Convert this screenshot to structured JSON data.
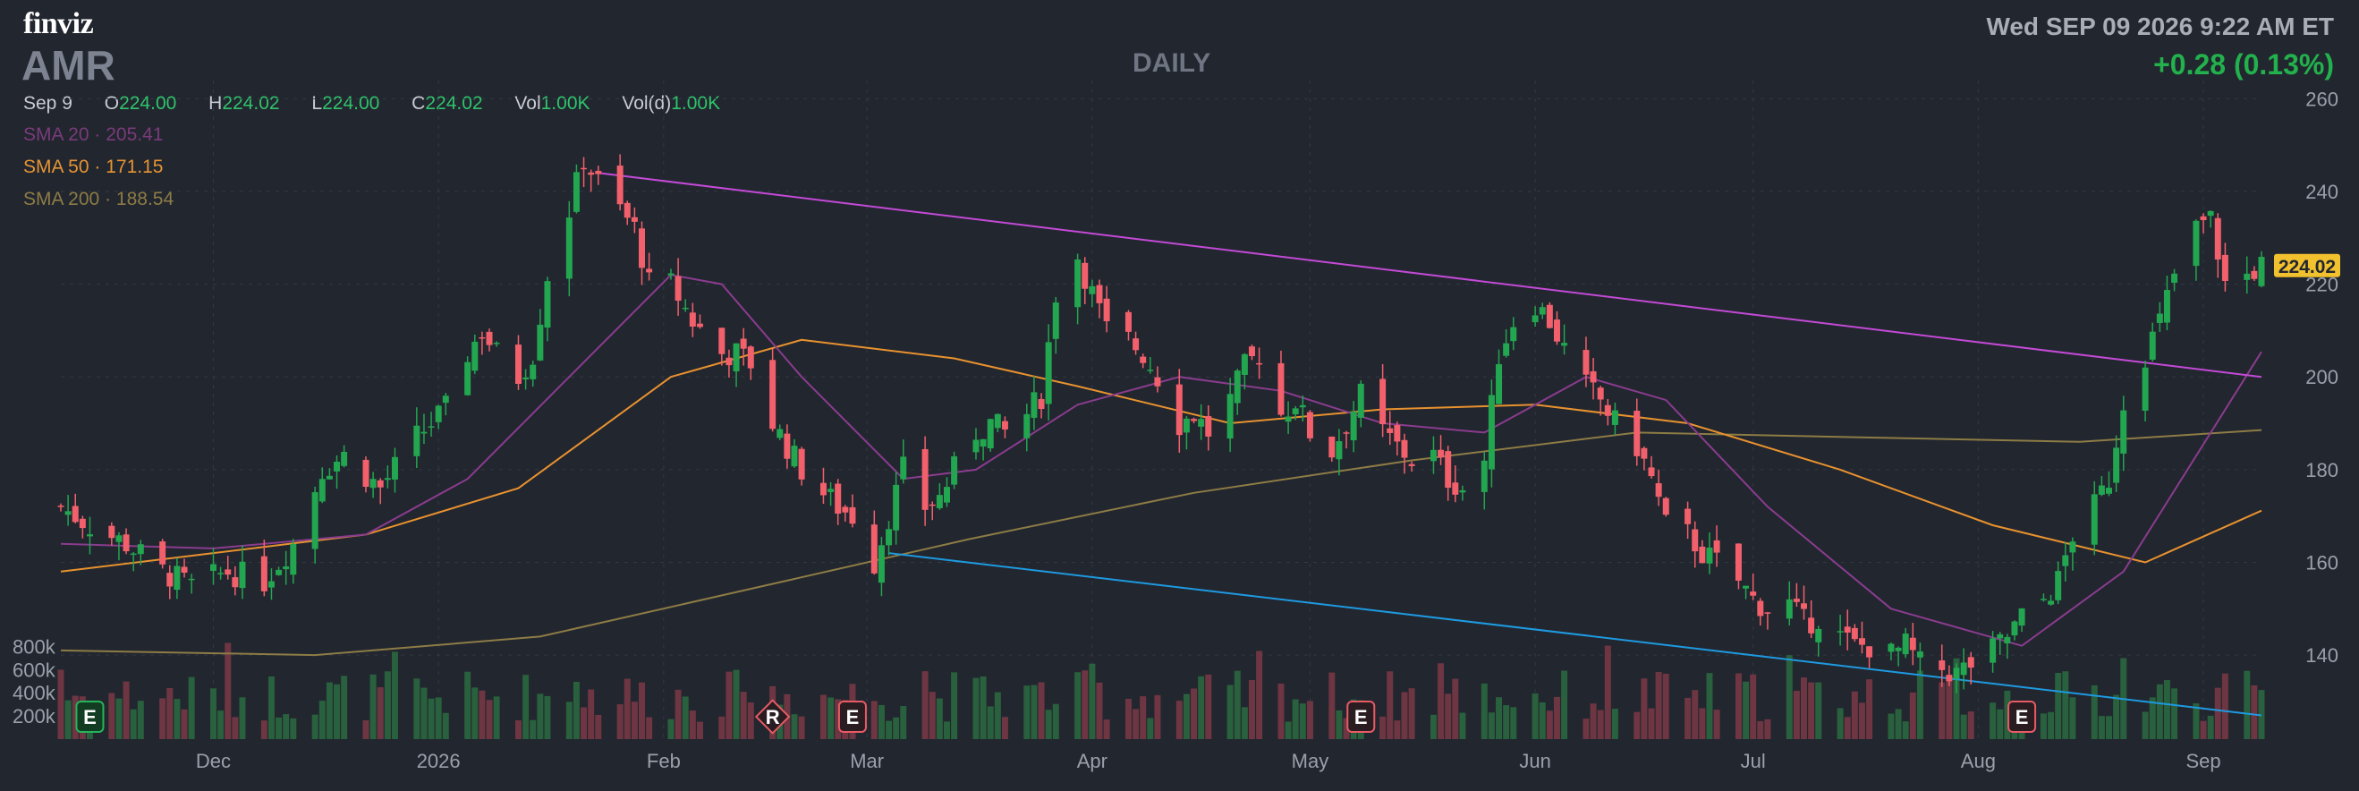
{
  "header": {
    "logo": "finviz",
    "ticker": "AMR",
    "period": "DAILY",
    "datetime": "Wed SEP 09 2026 9:22 AM ET",
    "change": "+0.28 (0.13%)"
  },
  "ohlc": {
    "date": "Sep 9",
    "open_label": "O",
    "open": "224.00",
    "high_label": "H",
    "high": "224.02",
    "low_label": "L",
    "low": "224.00",
    "close_label": "C",
    "close": "224.02",
    "vol_label": "Vol",
    "vol": "1.00K",
    "vold_label": "Vol(d)",
    "vold": "1.00K"
  },
  "indicators": {
    "sma20": {
      "label": "SMA 20",
      "value": "205.41"
    },
    "sma50": {
      "label": "SMA 50",
      "value": "171.15"
    },
    "sma200": {
      "label": "SMA 200",
      "value": "188.54"
    }
  },
  "colors": {
    "background": "#22262f",
    "up": "#22a650",
    "down": "#f2606c",
    "sma20": "#8a3c8e",
    "sma50": "#e8922f",
    "sma200": "#8d7c45",
    "upper_trendline": "#c34ad6",
    "lower_trendline": "#1e9ae0",
    "price_tag": "#f2c12e"
  },
  "chart_data": {
    "type": "candlestick",
    "title": "",
    "y_ticks": [
      "260",
      "240",
      "220",
      "200",
      "180",
      "160",
      "140"
    ],
    "ylim": [
      124,
      262
    ],
    "volume_ticks": [
      "800k",
      "600k",
      "400k",
      "200k"
    ],
    "volume_lim": [
      0,
      850000
    ],
    "x_ticks": [
      "Dec",
      "2026",
      "Feb",
      "Mar",
      "Apr",
      "May",
      "Jun",
      "Jul",
      "Aug",
      "Sep"
    ],
    "x_tick_dates": [
      "2025-12-01",
      "2026-01-01",
      "2026-02-01",
      "2026-03-01",
      "2026-04-01",
      "2026-05-01",
      "2026-06-01",
      "2026-07-01",
      "2026-08-01",
      "2026-09-01"
    ],
    "date_range": [
      "2025-11-10",
      "2026-09-09"
    ],
    "last_price": "224.02",
    "closes": [
      {
        "date": "2025-11-10",
        "close": 172
      },
      {
        "date": "2025-11-14",
        "close": 168
      },
      {
        "date": "2025-11-19",
        "close": 164
      },
      {
        "date": "2025-11-24",
        "close": 158
      },
      {
        "date": "2025-11-28",
        "close": 155
      },
      {
        "date": "2025-12-03",
        "close": 158
      },
      {
        "date": "2025-12-08",
        "close": 156
      },
      {
        "date": "2025-12-12",
        "close": 164
      },
      {
        "date": "2025-12-16",
        "close": 180
      },
      {
        "date": "2025-12-19",
        "close": 183
      },
      {
        "date": "2025-12-24",
        "close": 176
      },
      {
        "date": "2025-12-29",
        "close": 187
      },
      {
        "date": "2026-01-02",
        "close": 193
      },
      {
        "date": "2026-01-05",
        "close": 205
      },
      {
        "date": "2026-01-07",
        "close": 210
      },
      {
        "date": "2026-01-09",
        "close": 205
      },
      {
        "date": "2026-01-12",
        "close": 200
      },
      {
        "date": "2026-01-14",
        "close": 205
      },
      {
        "date": "2026-01-16",
        "close": 222
      },
      {
        "date": "2026-01-19",
        "close": 236
      },
      {
        "date": "2026-01-21",
        "close": 247
      },
      {
        "date": "2026-01-23",
        "close": 242
      },
      {
        "date": "2026-01-26",
        "close": 236
      },
      {
        "date": "2026-01-28",
        "close": 232
      },
      {
        "date": "2026-01-30",
        "close": 220
      },
      {
        "date": "2026-02-02",
        "close": 220
      },
      {
        "date": "2026-02-05",
        "close": 212
      },
      {
        "date": "2026-02-09",
        "close": 205
      },
      {
        "date": "2026-02-11",
        "close": 205
      },
      {
        "date": "2026-02-13",
        "close": 203
      },
      {
        "date": "2026-02-16",
        "close": 190
      },
      {
        "date": "2026-02-18",
        "close": 185
      },
      {
        "date": "2026-02-20",
        "close": 180
      },
      {
        "date": "2026-02-23",
        "close": 175
      },
      {
        "date": "2026-02-25",
        "close": 172
      },
      {
        "date": "2026-02-27",
        "close": 170
      },
      {
        "date": "2026-03-02",
        "close": 160
      },
      {
        "date": "2026-03-04",
        "close": 170
      },
      {
        "date": "2026-03-06",
        "close": 180
      },
      {
        "date": "2026-03-09",
        "close": 172
      },
      {
        "date": "2026-03-11",
        "close": 174
      },
      {
        "date": "2026-03-13",
        "close": 180
      },
      {
        "date": "2026-03-16",
        "close": 188
      },
      {
        "date": "2026-03-18",
        "close": 190
      },
      {
        "date": "2026-03-20",
        "close": 188
      },
      {
        "date": "2026-03-23",
        "close": 192
      },
      {
        "date": "2026-03-25",
        "close": 196
      },
      {
        "date": "2026-03-27",
        "close": 218
      },
      {
        "date": "2026-03-30",
        "close": 226
      },
      {
        "date": "2026-04-01",
        "close": 218
      },
      {
        "date": "2026-04-03",
        "close": 210
      },
      {
        "date": "2026-04-06",
        "close": 208
      },
      {
        "date": "2026-04-08",
        "close": 205
      },
      {
        "date": "2026-04-10",
        "close": 200
      },
      {
        "date": "2026-04-13",
        "close": 190
      },
      {
        "date": "2026-04-15",
        "close": 192
      },
      {
        "date": "2026-04-17",
        "close": 188
      },
      {
        "date": "2026-04-20",
        "close": 195
      },
      {
        "date": "2026-04-22",
        "close": 202
      },
      {
        "date": "2026-04-24",
        "close": 205
      },
      {
        "date": "2026-04-27",
        "close": 192
      },
      {
        "date": "2026-04-29",
        "close": 195
      },
      {
        "date": "2026-05-01",
        "close": 188
      },
      {
        "date": "2026-05-04",
        "close": 184
      },
      {
        "date": "2026-05-06",
        "close": 190
      },
      {
        "date": "2026-05-08",
        "close": 196
      },
      {
        "date": "2026-05-11",
        "close": 188
      },
      {
        "date": "2026-05-13",
        "close": 185
      },
      {
        "date": "2026-05-15",
        "close": 182
      },
      {
        "date": "2026-05-18",
        "close": 183
      },
      {
        "date": "2026-05-20",
        "close": 178
      },
      {
        "date": "2026-05-22",
        "close": 176
      },
      {
        "date": "2026-05-25",
        "close": 182
      },
      {
        "date": "2026-05-27",
        "close": 205
      },
      {
        "date": "2026-05-29",
        "close": 212
      },
      {
        "date": "2026-06-01",
        "close": 216
      },
      {
        "date": "2026-06-03",
        "close": 212
      },
      {
        "date": "2026-06-05",
        "close": 206
      },
      {
        "date": "2026-06-08",
        "close": 198
      },
      {
        "date": "2026-06-10",
        "close": 195
      },
      {
        "date": "2026-06-12",
        "close": 190
      },
      {
        "date": "2026-06-15",
        "close": 185
      },
      {
        "date": "2026-06-17",
        "close": 178
      },
      {
        "date": "2026-06-19",
        "close": 168
      },
      {
        "date": "2026-06-22",
        "close": 166
      },
      {
        "date": "2026-06-24",
        "close": 162
      },
      {
        "date": "2026-06-26",
        "close": 160
      },
      {
        "date": "2026-06-29",
        "close": 156
      },
      {
        "date": "2026-07-01",
        "close": 152
      },
      {
        "date": "2026-07-03",
        "close": 150
      },
      {
        "date": "2026-07-06",
        "close": 151
      },
      {
        "date": "2026-07-08",
        "close": 147
      },
      {
        "date": "2026-07-10",
        "close": 148
      },
      {
        "date": "2026-07-13",
        "close": 144
      },
      {
        "date": "2026-07-15",
        "close": 142
      },
      {
        "date": "2026-07-17",
        "close": 142
      },
      {
        "date": "2026-07-20",
        "close": 140
      },
      {
        "date": "2026-07-22",
        "close": 142
      },
      {
        "date": "2026-07-24",
        "close": 138
      },
      {
        "date": "2026-07-27",
        "close": 137
      },
      {
        "date": "2026-07-29",
        "close": 136
      },
      {
        "date": "2026-07-31",
        "close": 138
      },
      {
        "date": "2026-08-03",
        "close": 141
      },
      {
        "date": "2026-08-05",
        "close": 144
      },
      {
        "date": "2026-08-07",
        "close": 148
      },
      {
        "date": "2026-08-10",
        "close": 152
      },
      {
        "date": "2026-08-12",
        "close": 156
      },
      {
        "date": "2026-08-14",
        "close": 166
      },
      {
        "date": "2026-08-17",
        "close": 172
      },
      {
        "date": "2026-08-19",
        "close": 178
      },
      {
        "date": "2026-08-21",
        "close": 195
      },
      {
        "date": "2026-08-24",
        "close": 205
      },
      {
        "date": "2026-08-26",
        "close": 212
      },
      {
        "date": "2026-08-28",
        "close": 222
      },
      {
        "date": "2026-08-31",
        "close": 232
      },
      {
        "date": "2026-09-02",
        "close": 234
      },
      {
        "date": "2026-09-04",
        "close": 220
      },
      {
        "date": "2026-09-07",
        "close": 222
      },
      {
        "date": "2026-09-09",
        "close": 224
      }
    ],
    "sma20": [
      {
        "date": "2025-11-10",
        "value": 164
      },
      {
        "date": "2025-12-01",
        "value": 163
      },
      {
        "date": "2025-12-22",
        "value": 166
      },
      {
        "date": "2026-01-05",
        "value": 178
      },
      {
        "date": "2026-01-19",
        "value": 200
      },
      {
        "date": "2026-02-02",
        "value": 222
      },
      {
        "date": "2026-02-09",
        "value": 220
      },
      {
        "date": "2026-02-20",
        "value": 200
      },
      {
        "date": "2026-03-06",
        "value": 178
      },
      {
        "date": "2026-03-16",
        "value": 180
      },
      {
        "date": "2026-03-30",
        "value": 194
      },
      {
        "date": "2026-04-13",
        "value": 200
      },
      {
        "date": "2026-04-27",
        "value": 197
      },
      {
        "date": "2026-05-11",
        "value": 190
      },
      {
        "date": "2026-05-25",
        "value": 188
      },
      {
        "date": "2026-06-08",
        "value": 200
      },
      {
        "date": "2026-06-19",
        "value": 195
      },
      {
        "date": "2026-07-03",
        "value": 172
      },
      {
        "date": "2026-07-20",
        "value": 150
      },
      {
        "date": "2026-08-07",
        "value": 142
      },
      {
        "date": "2026-08-21",
        "value": 158
      },
      {
        "date": "2026-09-09",
        "value": 205.41
      }
    ],
    "sma50": [
      {
        "date": "2025-11-10",
        "value": 158
      },
      {
        "date": "2025-12-01",
        "value": 162
      },
      {
        "date": "2025-12-22",
        "value": 166
      },
      {
        "date": "2026-01-12",
        "value": 176
      },
      {
        "date": "2026-02-02",
        "value": 200
      },
      {
        "date": "2026-02-20",
        "value": 208
      },
      {
        "date": "2026-03-13",
        "value": 204
      },
      {
        "date": "2026-03-30",
        "value": 198
      },
      {
        "date": "2026-04-20",
        "value": 190
      },
      {
        "date": "2026-05-11",
        "value": 193
      },
      {
        "date": "2026-06-01",
        "value": 194
      },
      {
        "date": "2026-06-22",
        "value": 190
      },
      {
        "date": "2026-07-13",
        "value": 180
      },
      {
        "date": "2026-08-03",
        "value": 168
      },
      {
        "date": "2026-08-24",
        "value": 160
      },
      {
        "date": "2026-09-09",
        "value": 171.15
      }
    ],
    "sma200": [
      {
        "date": "2025-11-10",
        "value": 141
      },
      {
        "date": "2025-12-15",
        "value": 140
      },
      {
        "date": "2026-01-15",
        "value": 144
      },
      {
        "date": "2026-02-15",
        "value": 155
      },
      {
        "date": "2026-03-15",
        "value": 165
      },
      {
        "date": "2026-04-15",
        "value": 175
      },
      {
        "date": "2026-05-15",
        "value": 182
      },
      {
        "date": "2026-06-15",
        "value": 188
      },
      {
        "date": "2026-07-15",
        "value": 187
      },
      {
        "date": "2026-08-15",
        "value": 186
      },
      {
        "date": "2026-09-09",
        "value": 188.54
      }
    ],
    "trendlines": [
      {
        "name": "upper",
        "from": {
          "date": "2026-01-23",
          "value": 244
        },
        "to": {
          "date": "2026-09-09",
          "value": 200
        }
      },
      {
        "name": "lower",
        "from": {
          "date": "2026-03-04",
          "value": 162
        },
        "to": {
          "date": "2026-09-09",
          "value": 127
        }
      }
    ],
    "event_markers": [
      {
        "label": "E",
        "date": "2025-11-14",
        "kind": "up"
      },
      {
        "label": "R",
        "date": "2026-02-16",
        "kind": "down"
      },
      {
        "label": "E",
        "date": "2026-02-27",
        "kind": "down"
      },
      {
        "label": "E",
        "date": "2026-05-08",
        "kind": "down"
      },
      {
        "label": "E",
        "date": "2026-08-07",
        "kind": "down"
      }
    ]
  }
}
